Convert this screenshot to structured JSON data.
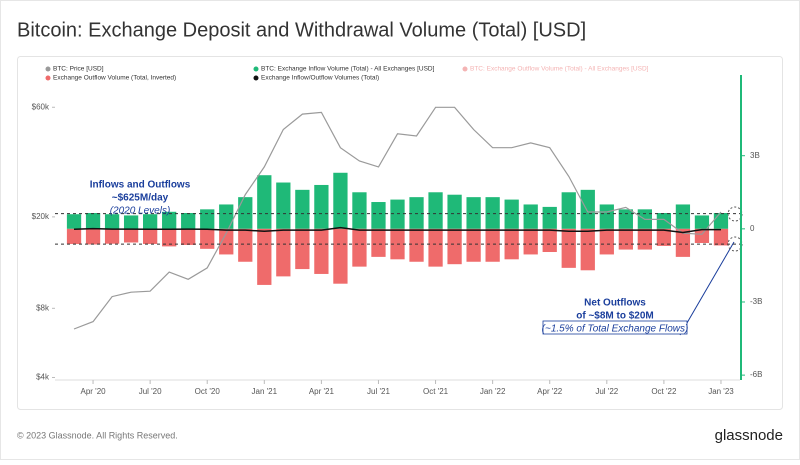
{
  "title": "Bitcoin: Exchange Deposit and Withdrawal Volume (Total) [USD]",
  "footer": {
    "copyright": "© 2023 Glassnode. All Rights Reserved.",
    "brand": "glassnode"
  },
  "chart_data": {
    "type": "combo",
    "x": [
      "2020-03",
      "2020-04",
      "2020-05",
      "2020-06",
      "2020-07",
      "2020-08",
      "2020-09",
      "2020-10",
      "2020-11",
      "2020-12",
      "2021-01",
      "2021-02",
      "2021-03",
      "2021-04",
      "2021-05",
      "2021-06",
      "2021-07",
      "2021-08",
      "2021-09",
      "2021-10",
      "2021-11",
      "2021-12",
      "2022-01",
      "2022-02",
      "2022-03",
      "2022-04",
      "2022-05",
      "2022-06",
      "2022-07",
      "2022-08",
      "2022-09",
      "2022-10",
      "2022-11",
      "2022-12",
      "2023-01"
    ],
    "xlim": [
      "2020-02",
      "2023-02"
    ],
    "xticks": [
      {
        "value": "2020-04",
        "label": "Apr '20"
      },
      {
        "value": "2020-07",
        "label": "Jul '20"
      },
      {
        "value": "2020-10",
        "label": "Oct '20"
      },
      {
        "value": "2021-01",
        "label": "Jan '21"
      },
      {
        "value": "2021-04",
        "label": "Apr '21"
      },
      {
        "value": "2021-07",
        "label": "Jul '21"
      },
      {
        "value": "2021-10",
        "label": "Oct '21"
      },
      {
        "value": "2022-01",
        "label": "Jan '22"
      },
      {
        "value": "2022-04",
        "label": "Apr '22"
      },
      {
        "value": "2022-07",
        "label": "Jul '22"
      },
      {
        "value": "2022-10",
        "label": "Oct '22"
      },
      {
        "value": "2023-01",
        "label": "Jan '23"
      }
    ],
    "ylim": [
      3900,
      75000
    ],
    "log_y": true,
    "yticks": [
      {
        "value": 4000,
        "label": "$4k"
      },
      {
        "value": 8000,
        "label": "$8k"
      },
      {
        "value": 20000,
        "label": "$20k"
      },
      {
        "value": 60000,
        "label": "$60k"
      }
    ],
    "y2lim": [
      -6200000000,
      5900000000
    ],
    "y2ticks": [
      {
        "value": 3000000000,
        "label": "3B"
      },
      0,
      {
        "value": -3000000000,
        "label": "-3B"
      },
      {
        "value": -6000000000,
        "label": "-6B"
      }
    ],
    "y2_axis_color": "#1fb978",
    "series": [
      {
        "name": "BTC: Price [USD]",
        "color": "#9a9a9a",
        "kind": "line",
        "axis": "y",
        "values": [
          6500,
          7000,
          9000,
          9400,
          9500,
          11500,
          10700,
          12000,
          17000,
          25000,
          33000,
          48000,
          56000,
          57000,
          40000,
          35000,
          33000,
          46000,
          45000,
          60000,
          60000,
          48000,
          40000,
          40000,
          42000,
          40000,
          30000,
          21000,
          21000,
          22000,
          19500,
          19500,
          17000,
          16800,
          21000
        ]
      },
      {
        "name": "BTC: Exchange Inflow Volume (Total) - All Exchanges [USD]",
        "color": "#1fb978",
        "kind": "bar",
        "axis": "y2",
        "values": [
          600000000,
          650000000,
          600000000,
          550000000,
          600000000,
          700000000,
          650000000,
          800000000,
          1000000000,
          1300000000,
          2200000000,
          1900000000,
          1600000000,
          1800000000,
          2300000000,
          1500000000,
          1100000000,
          1200000000,
          1300000000,
          1500000000,
          1400000000,
          1300000000,
          1300000000,
          1200000000,
          1000000000,
          900000000,
          1500000000,
          1600000000,
          1000000000,
          800000000,
          800000000,
          650000000,
          1000000000,
          550000000,
          650000000
        ]
      },
      {
        "name": "Exchange Outflow Volume (Total, Inverted)",
        "color": "#ef6b6b",
        "kind": "bar",
        "axis": "y2",
        "values": [
          -620000000,
          -640000000,
          -610000000,
          -560000000,
          -620000000,
          -720000000,
          -660000000,
          -820000000,
          -1050000000,
          -1350000000,
          -2300000000,
          -1950000000,
          -1650000000,
          -1850000000,
          -2250000000,
          -1550000000,
          -1150000000,
          -1250000000,
          -1350000000,
          -1550000000,
          -1450000000,
          -1350000000,
          -1350000000,
          -1250000000,
          -1050000000,
          -950000000,
          -1600000000,
          -1700000000,
          -1050000000,
          -850000000,
          -850000000,
          -700000000,
          -1150000000,
          -580000000,
          -680000000
        ]
      },
      {
        "name": "Exchange Inflow/Outflow Volumes (Total)",
        "color": "#111111",
        "kind": "line",
        "axis": "y2",
        "values": [
          -20000000,
          10000000,
          -10000000,
          -10000000,
          -20000000,
          -20000000,
          -10000000,
          -20000000,
          -50000000,
          -50000000,
          -100000000,
          -50000000,
          -50000000,
          -50000000,
          50000000,
          -50000000,
          -50000000,
          -50000000,
          -50000000,
          -50000000,
          -50000000,
          -50000000,
          -50000000,
          -50000000,
          -50000000,
          -50000000,
          -100000000,
          -100000000,
          -50000000,
          -50000000,
          -50000000,
          -50000000,
          -150000000,
          -30000000,
          -30000000
        ]
      }
    ],
    "inactive_legend": {
      "name": "BTC: Exchange Outflow Volume (Total) - All Exchanges [USD]",
      "color": "#f4b4b4"
    },
    "reference_lines": [
      625000000,
      -625000000
    ],
    "annotations": [
      {
        "lines": [
          "Inflows and Outflows",
          "~$625M/day",
          "(2020 Levels)"
        ]
      },
      {
        "lines": [
          "Net Outflows",
          "of ~$8M to $20M",
          "(~1.5% of Total Exchange Flows)"
        ]
      }
    ]
  }
}
